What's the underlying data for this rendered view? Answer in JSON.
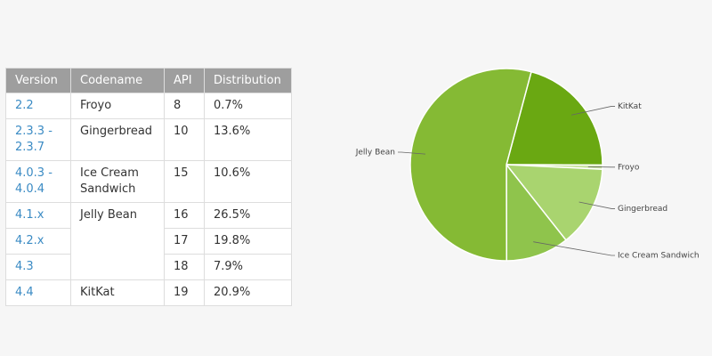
{
  "table": {
    "header": [
      "Version",
      "Codename",
      "API",
      "Distribution"
    ],
    "rows": [
      [
        "2.2",
        "Froyo",
        "8",
        "0.7%"
      ],
      [
        "2.3.3 - 2.3.7",
        "Gingerbread",
        "10",
        "13.6%"
      ],
      [
        "4.0.3 - 4.0.4",
        "Ice Cream Sandwich",
        "15",
        "10.6%"
      ],
      [
        "4.1.x",
        "Jelly Bean",
        "16",
        "26.5%"
      ],
      [
        "4.2.x",
        "17",
        "19.8%"
      ],
      [
        "4.3",
        "18",
        "7.9%"
      ],
      [
        "4.4",
        "KitKat",
        "19",
        "20.9%"
      ]
    ]
  },
  "chart_data": {
    "type": "pie",
    "categories": [
      "KitKat",
      "Froyo",
      "Gingerbread",
      "Ice Cream Sandwich",
      "Jelly Bean"
    ],
    "values": [
      20.9,
      0.7,
      13.6,
      10.6,
      54.2
    ],
    "colors": [
      "#6aa812",
      "#c9e3a0",
      "#a9d46f",
      "#8fc44c",
      "#85ba34"
    ]
  }
}
